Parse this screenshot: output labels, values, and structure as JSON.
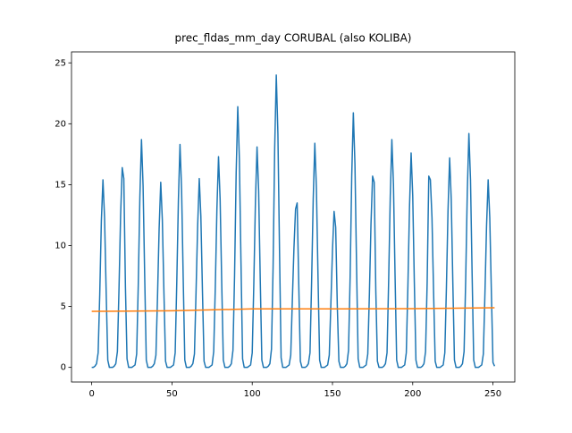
{
  "chart_data": {
    "type": "line",
    "title": "prec_fldas_mm_day CORUBAL (also KOLIBA)",
    "xlim": [
      -12.6,
      263.6
    ],
    "xticks": [
      0,
      50,
      100,
      150,
      200,
      250
    ],
    "ylim": [
      -1.2,
      25.9
    ],
    "yticks": [
      0,
      5,
      10,
      15,
      20,
      25
    ],
    "grid": false,
    "series": [
      {
        "color": "#1f77b4",
        "x": [
          0,
          1,
          2,
          3,
          4,
          5,
          6,
          7,
          8,
          9,
          10,
          11,
          12,
          13,
          14,
          15,
          16,
          17,
          18,
          19,
          20,
          21,
          22,
          23,
          24,
          25,
          26,
          27,
          28,
          29,
          30,
          31,
          32,
          33,
          34,
          35,
          36,
          37,
          38,
          39,
          40,
          41,
          42,
          43,
          44,
          45,
          46,
          47,
          48,
          49,
          50,
          51,
          52,
          53,
          54,
          55,
          56,
          57,
          58,
          59,
          60,
          61,
          62,
          63,
          64,
          65,
          66,
          67,
          68,
          69,
          70,
          71,
          72,
          73,
          74,
          75,
          76,
          77,
          78,
          79,
          80,
          81,
          82,
          83,
          84,
          85,
          86,
          87,
          88,
          89,
          90,
          91,
          92,
          93,
          94,
          95,
          96,
          97,
          98,
          99,
          100,
          101,
          102,
          103,
          104,
          105,
          106,
          107,
          108,
          109,
          110,
          111,
          112,
          113,
          114,
          115,
          116,
          117,
          118,
          119,
          120,
          121,
          122,
          123,
          124,
          125,
          126,
          127,
          128,
          129,
          130,
          131,
          132,
          133,
          134,
          135,
          136,
          137,
          138,
          139,
          140,
          141,
          142,
          143,
          144,
          145,
          146,
          147,
          148,
          149,
          150,
          151,
          152,
          153,
          154,
          155,
          156,
          157,
          158,
          159,
          160,
          161,
          162,
          163,
          164,
          165,
          166,
          167,
          168,
          169,
          170,
          171,
          172,
          173,
          174,
          175,
          176,
          177,
          178,
          179,
          180,
          181,
          182,
          183,
          184,
          185,
          186,
          187,
          188,
          189,
          190,
          191,
          192,
          193,
          194,
          195,
          196,
          197,
          198,
          199,
          200,
          201,
          202,
          203,
          204,
          205,
          206,
          207,
          208,
          209,
          210,
          211,
          212,
          213,
          214,
          215,
          216,
          217,
          218,
          219,
          220,
          221,
          222,
          223,
          224,
          225,
          226,
          227,
          228,
          229,
          230,
          231,
          232,
          233,
          234,
          235,
          236,
          237,
          238,
          239,
          240,
          241,
          242,
          243,
          244,
          245,
          246,
          247,
          248,
          249,
          250,
          251
        ],
        "values": [
          0.0,
          0.0,
          0.1,
          0.3,
          1.2,
          6.0,
          12.0,
          15.4,
          12.3,
          6.2,
          0.6,
          0.0,
          0.0,
          0.0,
          0.1,
          0.3,
          1.3,
          6.5,
          12.5,
          16.4,
          15.5,
          6.6,
          0.7,
          0.0,
          0.0,
          0.0,
          0.1,
          0.2,
          1.1,
          6.8,
          14.0,
          18.7,
          14.9,
          7.5,
          0.6,
          0.0,
          0.0,
          0.0,
          0.1,
          0.3,
          1.0,
          5.8,
          11.4,
          15.2,
          12.1,
          6.1,
          0.5,
          0.0,
          0.0,
          0.0,
          0.1,
          0.2,
          1.2,
          7.0,
          13.7,
          18.3,
          14.6,
          7.3,
          0.6,
          0.0,
          0.0,
          0.0,
          0.1,
          0.3,
          1.1,
          6.2,
          11.6,
          15.5,
          12.4,
          6.2,
          0.5,
          0.0,
          0.0,
          0.0,
          0.1,
          0.2,
          1.3,
          6.6,
          13.0,
          17.3,
          13.8,
          6.9,
          0.6,
          0.0,
          0.0,
          0.0,
          0.1,
          0.3,
          1.4,
          7.5,
          16.0,
          21.4,
          17.1,
          8.6,
          0.7,
          0.0,
          0.0,
          0.0,
          0.1,
          0.2,
          1.2,
          6.9,
          13.6,
          18.1,
          14.5,
          7.2,
          0.6,
          0.0,
          0.0,
          0.0,
          0.1,
          0.3,
          1.5,
          8.2,
          18.0,
          24.0,
          19.2,
          9.6,
          0.8,
          0.0,
          0.0,
          0.0,
          0.1,
          0.2,
          1.0,
          5.5,
          9.8,
          13.0,
          13.5,
          6.8,
          0.5,
          0.0,
          0.0,
          0.0,
          0.1,
          0.3,
          1.2,
          7.0,
          13.8,
          18.4,
          14.7,
          7.4,
          0.6,
          0.0,
          0.0,
          0.0,
          0.1,
          0.2,
          1.0,
          5.2,
          9.6,
          12.8,
          11.5,
          5.1,
          0.5,
          0.0,
          0.0,
          0.0,
          0.1,
          0.3,
          1.4,
          7.4,
          15.7,
          20.9,
          16.7,
          8.4,
          0.7,
          0.0,
          0.0,
          0.0,
          0.1,
          0.2,
          1.1,
          6.0,
          11.8,
          15.7,
          15.2,
          6.3,
          0.5,
          0.0,
          0.0,
          0.0,
          0.1,
          0.3,
          1.2,
          7.1,
          14.0,
          18.7,
          15.0,
          7.5,
          0.6,
          0.0,
          0.0,
          0.0,
          0.1,
          0.2,
          1.2,
          6.7,
          13.2,
          17.6,
          14.1,
          7.0,
          0.6,
          0.0,
          0.0,
          0.0,
          0.1,
          0.3,
          1.3,
          7.0,
          15.7,
          15.4,
          12.3,
          6.2,
          0.5,
          0.0,
          0.0,
          0.0,
          0.1,
          0.2,
          1.2,
          6.6,
          12.9,
          17.2,
          13.8,
          6.9,
          0.6,
          0.0,
          0.0,
          0.0,
          0.1,
          0.3,
          1.3,
          7.2,
          14.4,
          19.2,
          15.4,
          7.7,
          0.6,
          0.0,
          0.0,
          0.0,
          0.1,
          0.2,
          1.1,
          6.1,
          11.6,
          15.4,
          12.3,
          6.2,
          0.4,
          0.1
        ]
      },
      {
        "color": "#ff7f0e",
        "x": [
          0,
          50,
          100,
          150,
          200,
          251
        ],
        "values": [
          4.6,
          4.65,
          4.8,
          4.8,
          4.82,
          4.9
        ]
      }
    ]
  }
}
